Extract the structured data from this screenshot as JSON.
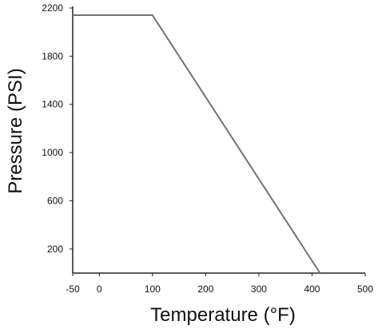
{
  "chart_data": {
    "type": "line",
    "xlabel": "Temperature (°F)",
    "ylabel": "Pressure (PSI)",
    "xlim": [
      -50,
      500
    ],
    "ylim": [
      0,
      2200
    ],
    "x_ticks": [
      -50,
      0,
      100,
      200,
      300,
      400,
      500
    ],
    "y_ticks": [
      200,
      600,
      1000,
      1400,
      1800,
      2200
    ],
    "grid": false,
    "line_color": "#7a6f66",
    "series": [
      {
        "x": [
          -50,
          100,
          415
        ],
        "y": [
          2140,
          2140,
          0
        ]
      }
    ]
  }
}
